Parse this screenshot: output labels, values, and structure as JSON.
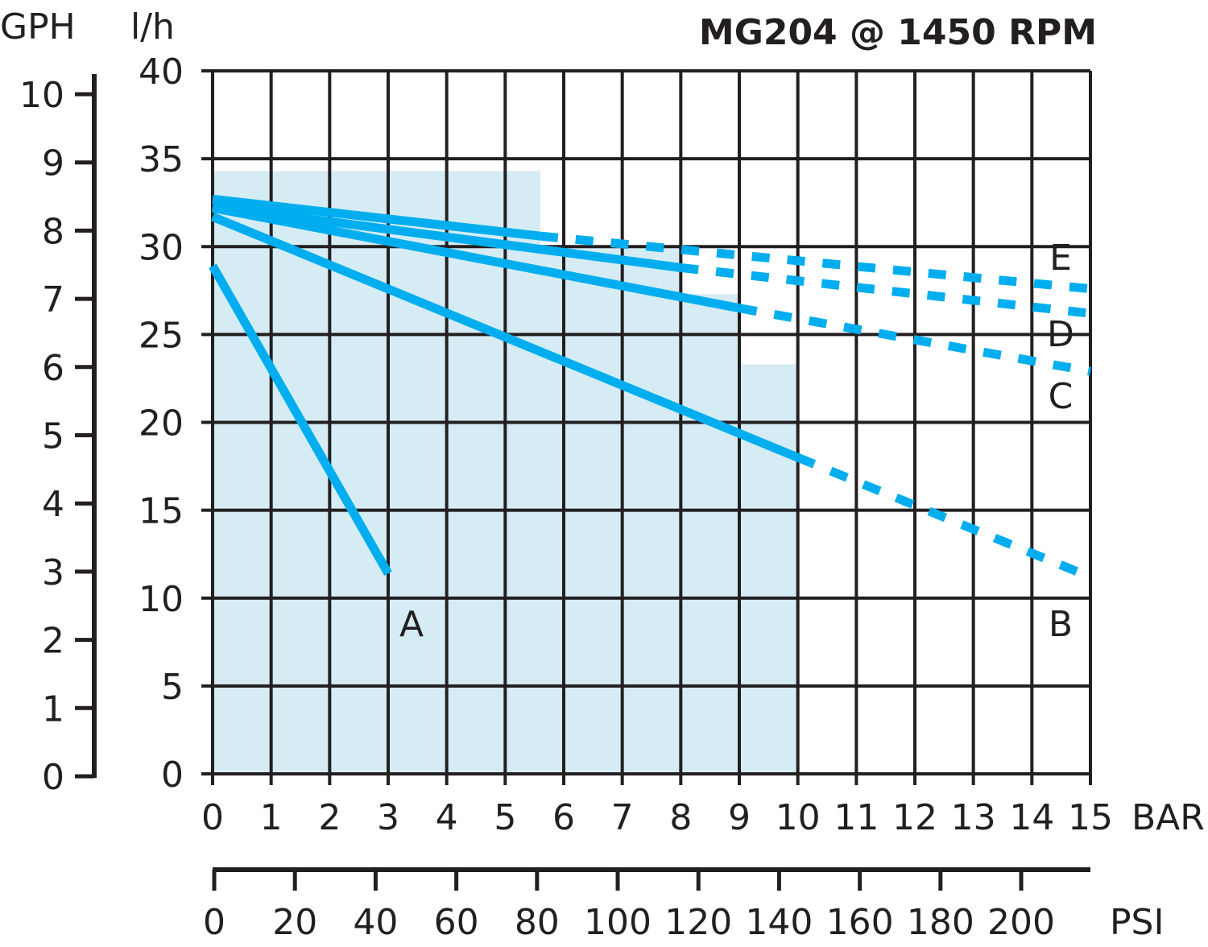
{
  "chart_data": {
    "type": "line",
    "title": "MG204 @ 1450 RPM",
    "x_unit": "BAR",
    "x_secondary_unit": "PSI",
    "y_unit": "l/h",
    "y_secondary_unit": "GPH",
    "xlim": [
      0,
      15
    ],
    "ylim": [
      0,
      40
    ],
    "y_secondary_lim": [
      0,
      10
    ],
    "grid": true,
    "x_ticks": [
      "0",
      "1",
      "2",
      "3",
      "4",
      "5",
      "6",
      "7",
      "8",
      "9",
      "10",
      "11",
      "12",
      "13",
      "14",
      "15"
    ],
    "y_ticks": [
      "0",
      "5",
      "10",
      "15",
      "20",
      "25",
      "30",
      "35",
      "40"
    ],
    "y_secondary_ticks": [
      "0",
      "1",
      "2",
      "3",
      "4",
      "5",
      "6",
      "7",
      "8",
      "9",
      "10"
    ],
    "x_secondary_ticks": [
      "0",
      "20",
      "40",
      "60",
      "80",
      "100",
      "120",
      "140",
      "160",
      "180",
      "200"
    ],
    "shaded_region": {
      "color": "#d5ecf4",
      "steps": [
        [
          0,
          5.6,
          34.3
        ],
        [
          5.6,
          8,
          30
        ],
        [
          8,
          9,
          27.3
        ],
        [
          9,
          10,
          23.3
        ]
      ]
    },
    "line_color": "#00aeef",
    "series": [
      {
        "name": "A",
        "solid": [
          [
            0,
            28.9
          ],
          [
            3,
            11.4
          ]
        ],
        "dashed": []
      },
      {
        "name": "B",
        "solid": [
          [
            0,
            31.7
          ],
          [
            10,
            18.0
          ]
        ],
        "dashed": [
          [
            10,
            18.0
          ],
          [
            15,
            11.2
          ]
        ]
      },
      {
        "name": "C",
        "solid": [
          [
            0,
            32.2
          ],
          [
            9,
            26.5
          ]
        ],
        "dashed": [
          [
            9,
            26.5
          ],
          [
            15,
            22.9
          ]
        ]
      },
      {
        "name": "D",
        "solid": [
          [
            0,
            32.3
          ],
          [
            8,
            28.8
          ]
        ],
        "dashed": [
          [
            8,
            28.8
          ],
          [
            15,
            26.2
          ]
        ]
      },
      {
        "name": "E",
        "solid": [
          [
            0,
            32.7
          ],
          [
            5.6,
            30.6
          ]
        ],
        "dashed": [
          [
            5.6,
            30.6
          ],
          [
            15,
            27.6
          ]
        ]
      }
    ]
  }
}
